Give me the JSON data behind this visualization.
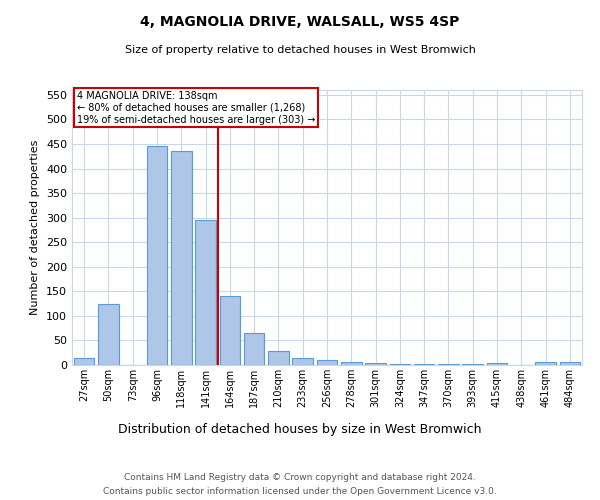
{
  "title1": "4, MAGNOLIA DRIVE, WALSALL, WS5 4SP",
  "title2": "Size of property relative to detached houses in West Bromwich",
  "xlabel": "Distribution of detached houses by size in West Bromwich",
  "ylabel": "Number of detached properties",
  "footnote1": "Contains HM Land Registry data © Crown copyright and database right 2024.",
  "footnote2": "Contains public sector information licensed under the Open Government Licence v3.0.",
  "categories": [
    "27sqm",
    "50sqm",
    "73sqm",
    "96sqm",
    "118sqm",
    "141sqm",
    "164sqm",
    "187sqm",
    "210sqm",
    "233sqm",
    "256sqm",
    "278sqm",
    "301sqm",
    "324sqm",
    "347sqm",
    "370sqm",
    "393sqm",
    "415sqm",
    "438sqm",
    "461sqm",
    "484sqm"
  ],
  "values": [
    15,
    125,
    0,
    445,
    435,
    295,
    140,
    65,
    28,
    15,
    10,
    7,
    5,
    3,
    2,
    2,
    2,
    4,
    0,
    7,
    7
  ],
  "bar_color": "#aec6e8",
  "bar_edgecolor": "#5b9bd5",
  "vline_x_index": 5,
  "vline_color": "#cc0000",
  "annotation_line1": "4 MAGNOLIA DRIVE: 138sqm",
  "annotation_line2": "← 80% of detached houses are smaller (1,268)",
  "annotation_line3": "19% of semi-detached houses are larger (303) →",
  "annotation_box_edgecolor": "#cc0000",
  "annotation_box_facecolor": "#ffffff",
  "ylim": [
    0,
    560
  ],
  "yticks": [
    0,
    50,
    100,
    150,
    200,
    250,
    300,
    350,
    400,
    450,
    500,
    550
  ],
  "background_color": "#ffffff",
  "grid_color": "#c8d8e8"
}
